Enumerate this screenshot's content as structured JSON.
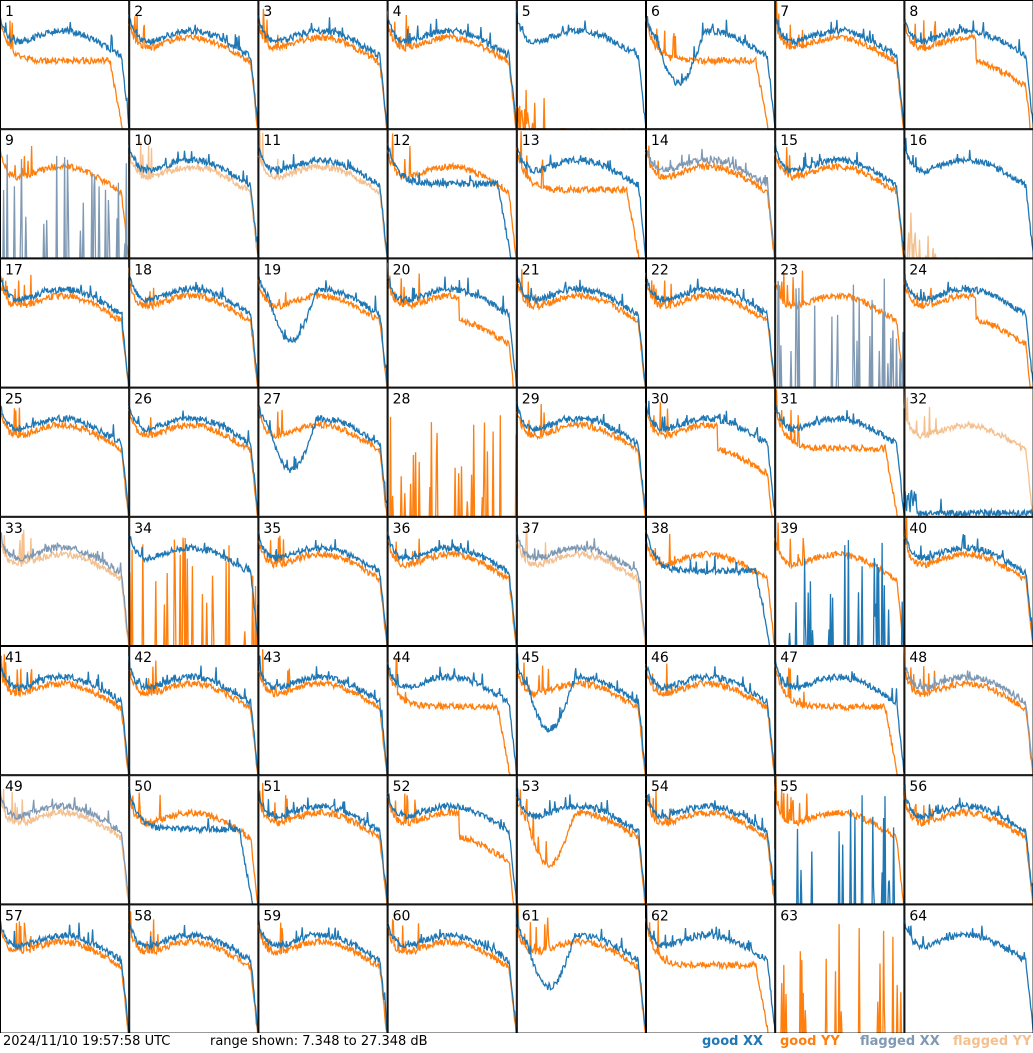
{
  "footer": {
    "timestamp": "2024/11/10 19:57:58 UTC",
    "range_text": "range shown: 7.348 to 27.348 dB"
  },
  "legend": {
    "good_xx": "good XX",
    "good_yy": "good YY",
    "flagged_xx": "flagged XX",
    "flagged_yy": "flagged YY"
  },
  "colors": {
    "good_xx": "#1f77b4",
    "good_yy": "#ff7f0e",
    "flagged_xx": "#8099b3",
    "flagged_yy": "#f5c08f",
    "grid": "#000000"
  },
  "chart_data": {
    "type": "line",
    "y_unit": "dB",
    "ylim": [
      7.348,
      27.348
    ],
    "layout": "8x8 small multiples",
    "panels": [
      {
        "id": "1",
        "xx": "good",
        "yy": "good",
        "yy_shape": "dropoff"
      },
      {
        "id": "2",
        "xx": "good",
        "yy": "good"
      },
      {
        "id": "3",
        "xx": "good",
        "yy": "good"
      },
      {
        "id": "4",
        "xx": "good",
        "yy": "good"
      },
      {
        "id": "5",
        "xx": "good",
        "yy": "good",
        "yy_shape": "flat-low"
      },
      {
        "id": "6",
        "xx": "good",
        "yy": "good",
        "xx_shape": "dip",
        "yy_shape": "dropoff"
      },
      {
        "id": "7",
        "xx": "good",
        "yy": "good"
      },
      {
        "id": "8",
        "xx": "good",
        "yy": "good",
        "yy_shape": "low-tail"
      },
      {
        "id": "9",
        "xx": "flagged",
        "yy": "good",
        "xx_shape": "spikes"
      },
      {
        "id": "10",
        "xx": "good",
        "yy": "flagged"
      },
      {
        "id": "11",
        "xx": "good",
        "yy": "flagged"
      },
      {
        "id": "12",
        "xx": "good",
        "yy": "good",
        "xx_shape": "dropoff"
      },
      {
        "id": "13",
        "xx": "good",
        "yy": "good",
        "yy_shape": "dropoff"
      },
      {
        "id": "14",
        "xx": "flagged",
        "yy": "good"
      },
      {
        "id": "15",
        "xx": "good",
        "yy": "good"
      },
      {
        "id": "16",
        "xx": "good",
        "yy": "flagged",
        "yy_shape": "flat-low"
      },
      {
        "id": "17",
        "xx": "good",
        "yy": "good"
      },
      {
        "id": "18",
        "xx": "good",
        "yy": "good"
      },
      {
        "id": "19",
        "xx": "good",
        "yy": "good",
        "xx_shape": "dip"
      },
      {
        "id": "20",
        "xx": "good",
        "yy": "good",
        "yy_shape": "low-tail"
      },
      {
        "id": "21",
        "xx": "good",
        "yy": "good"
      },
      {
        "id": "22",
        "xx": "good",
        "yy": "good"
      },
      {
        "id": "23",
        "xx": "flagged",
        "yy": "good",
        "xx_shape": "spikes"
      },
      {
        "id": "24",
        "xx": "good",
        "yy": "good",
        "yy_shape": "low-tail"
      },
      {
        "id": "25",
        "xx": "good",
        "yy": "good"
      },
      {
        "id": "26",
        "xx": "good",
        "yy": "good"
      },
      {
        "id": "27",
        "xx": "good",
        "yy": "good",
        "xx_shape": "dip"
      },
      {
        "id": "28",
        "xx": "good",
        "yy": "good",
        "yy_shape": "spikes",
        "xx_shape": "none"
      },
      {
        "id": "29",
        "xx": "good",
        "yy": "good"
      },
      {
        "id": "30",
        "xx": "good",
        "yy": "good",
        "yy_shape": "low-tail"
      },
      {
        "id": "31",
        "xx": "good",
        "yy": "good",
        "yy_shape": "dropoff"
      },
      {
        "id": "32",
        "xx": "good",
        "yy": "flagged",
        "xx_shape": "flat-low"
      },
      {
        "id": "33",
        "xx": "flagged",
        "yy": "flagged"
      },
      {
        "id": "34",
        "xx": "good",
        "yy": "good",
        "yy_shape": "spikes"
      },
      {
        "id": "35",
        "xx": "good",
        "yy": "good"
      },
      {
        "id": "36",
        "xx": "good",
        "yy": "good"
      },
      {
        "id": "37",
        "xx": "flagged",
        "yy": "flagged"
      },
      {
        "id": "38",
        "xx": "good",
        "yy": "good",
        "xx_shape": "dropoff"
      },
      {
        "id": "39",
        "xx": "good",
        "yy": "good",
        "xx_shape": "spikes"
      },
      {
        "id": "40",
        "xx": "good",
        "yy": "good"
      },
      {
        "id": "41",
        "xx": "good",
        "yy": "good"
      },
      {
        "id": "42",
        "xx": "good",
        "yy": "good"
      },
      {
        "id": "43",
        "xx": "good",
        "yy": "good"
      },
      {
        "id": "44",
        "xx": "good",
        "yy": "good",
        "yy_shape": "dropoff"
      },
      {
        "id": "45",
        "xx": "good",
        "yy": "good",
        "xx_shape": "dip"
      },
      {
        "id": "46",
        "xx": "good",
        "yy": "good"
      },
      {
        "id": "47",
        "xx": "good",
        "yy": "good",
        "yy_shape": "dropoff"
      },
      {
        "id": "48",
        "xx": "flagged",
        "yy": "good"
      },
      {
        "id": "49",
        "xx": "flagged",
        "yy": "flagged"
      },
      {
        "id": "50",
        "xx": "good",
        "yy": "good",
        "xx_shape": "dropoff"
      },
      {
        "id": "51",
        "xx": "good",
        "yy": "good"
      },
      {
        "id": "52",
        "xx": "good",
        "yy": "good",
        "yy_shape": "low-tail"
      },
      {
        "id": "53",
        "xx": "good",
        "yy": "good",
        "yy_shape": "dip"
      },
      {
        "id": "54",
        "xx": "good",
        "yy": "good"
      },
      {
        "id": "55",
        "xx": "good",
        "yy": "good",
        "xx_shape": "spikes"
      },
      {
        "id": "56",
        "xx": "good",
        "yy": "good"
      },
      {
        "id": "57",
        "xx": "good",
        "yy": "good"
      },
      {
        "id": "58",
        "xx": "good",
        "yy": "good"
      },
      {
        "id": "59",
        "xx": "good",
        "yy": "good"
      },
      {
        "id": "60",
        "xx": "good",
        "yy": "good"
      },
      {
        "id": "61",
        "xx": "good",
        "yy": "good",
        "xx_shape": "dip"
      },
      {
        "id": "62",
        "xx": "good",
        "yy": "good",
        "yy_shape": "dropoff"
      },
      {
        "id": "63",
        "xx": "good",
        "yy": "good",
        "yy_shape": "spikes",
        "xx_shape": "none"
      },
      {
        "id": "64",
        "xx": "good",
        "yy": "good",
        "yy_shape": "none"
      }
    ]
  }
}
